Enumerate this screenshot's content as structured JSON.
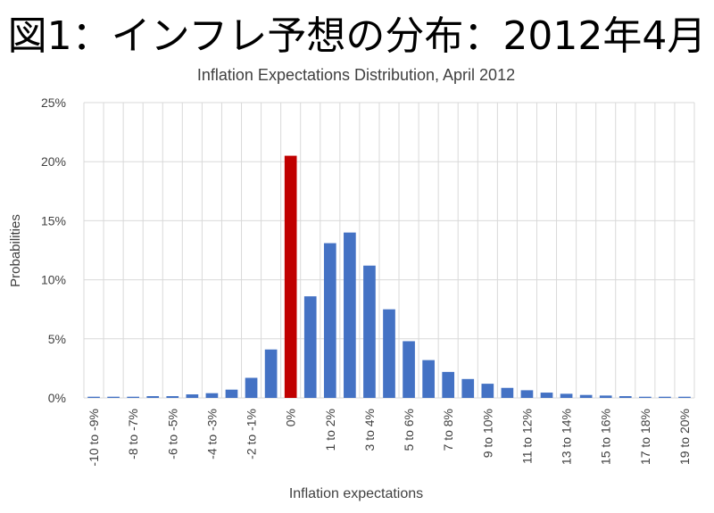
{
  "heading": "図1：インフレ予想の分布：2012年4月",
  "chart_data": {
    "type": "bar",
    "title": "Inflation Expectations Distribution, April 2012",
    "xlabel": "Inflation expectations",
    "ylabel": "Probabilities",
    "ylim": [
      0,
      25
    ],
    "yticks": [
      "0%",
      "5%",
      "10%",
      "15%",
      "20%",
      "25%"
    ],
    "grid": true,
    "legend": "none",
    "colors": {
      "default": "#4472C4",
      "highlight": "#C00000",
      "grid": "#D9D9D9",
      "text": "#404040"
    },
    "highlight_category": "0%",
    "categories": [
      "-10 to -9%",
      "-9 to -8%",
      "-8 to -7%",
      "-7 to -6%",
      "-6 to -5%",
      "-5 to -4%",
      "-4 to -3%",
      "-3 to -2%",
      "-2 to -1%",
      "-1 to 0%",
      "0%",
      "0 to 1%",
      "1 to 2%",
      "2 to 3%",
      "3 to 4%",
      "4 to 5%",
      "5 to 6%",
      "6 to 7%",
      "7 to 8%",
      "8 to 9%",
      "9 to 10%",
      "10 to 11%",
      "11 to 12%",
      "12 to 13%",
      "13 to 14%",
      "14 to 15%",
      "15 to 16%",
      "16 to 17%",
      "17 to 18%",
      "18 to 19%",
      "19 to 20%"
    ],
    "shown_labels": [
      "-10 to -9%",
      "-8 to -7%",
      "-6 to -5%",
      "-4 to -3%",
      "-2 to -1%",
      "0%",
      "1 to 2%",
      "3 to 4%",
      "5 to 6%",
      "7 to 8%",
      "9 to 10%",
      "11 to 12%",
      "13 to 14%",
      "15 to 16%",
      "17 to 18%",
      "19 to 20%"
    ],
    "values": [
      0.1,
      0.1,
      0.1,
      0.15,
      0.15,
      0.3,
      0.4,
      0.7,
      1.7,
      4.1,
      20.5,
      8.6,
      13.1,
      14.0,
      11.2,
      7.5,
      4.8,
      3.2,
      2.2,
      1.6,
      1.2,
      0.85,
      0.65,
      0.45,
      0.35,
      0.25,
      0.2,
      0.15,
      0.1,
      0.1,
      0.1
    ]
  }
}
